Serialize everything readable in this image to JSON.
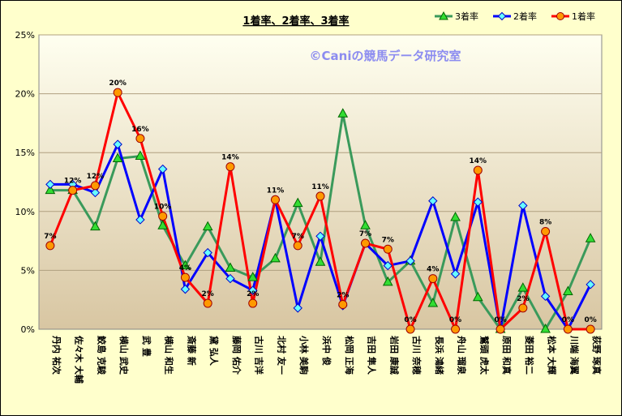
{
  "chart_data": {
    "type": "line",
    "title": "1着率、2着率、3着率",
    "watermark": "©Caniの競馬データ研究室",
    "ylim": [
      0,
      25
    ],
    "yticks": [
      "0%",
      "5%",
      "10%",
      "15%",
      "20%",
      "25%"
    ],
    "legend_position": "top-right",
    "categories": [
      "丹内 祐次",
      "佐々木 大輔",
      "鮫島 克駿",
      "横山 武史",
      "武 豊",
      "横山 和生",
      "斎藤 新",
      "黛 弘人",
      "藤岡 佑介",
      "古川 吉洋",
      "北村 友一",
      "小林 美駒",
      "浜中 俊",
      "松岡 正海",
      "吉田 隼人",
      "岩田 康誠",
      "古川 奈穂",
      "長浜 鴻緒",
      "舟山 瑠泉",
      "鷲頭 虎太",
      "原田 和真",
      "菱田 裕二",
      "松本 大輝",
      "川端 海翼",
      "荻野 琢真"
    ],
    "series": [
      {
        "name": "3着率",
        "color": "#3a9a5b",
        "marker": "triangle",
        "marker_fill": "#33dd33",
        "values": [
          11.8,
          11.8,
          8.7,
          14.5,
          14.7,
          8.8,
          5.4,
          8.7,
          5.2,
          4.4,
          6.0,
          10.7,
          5.7,
          18.3,
          8.8,
          4.0,
          5.8,
          2.2,
          9.5,
          2.7,
          0.0,
          3.5,
          0.0,
          3.2,
          7.7
        ]
      },
      {
        "name": "2着率",
        "color": "#0000ff",
        "marker": "diamond",
        "marker_fill": "#66ffff",
        "values": [
          12.3,
          12.3,
          11.6,
          15.7,
          9.3,
          13.6,
          3.4,
          6.5,
          4.3,
          3.3,
          11.0,
          1.8,
          7.9,
          2.0,
          7.3,
          5.4,
          5.8,
          10.9,
          4.7,
          10.8,
          0.0,
          10.5,
          2.8,
          0.0,
          3.8
        ]
      },
      {
        "name": "1着率",
        "color": "#ff0000",
        "marker": "circle",
        "marker_fill": "#ff9900",
        "values": [
          7.1,
          11.8,
          12.2,
          20.1,
          16.2,
          9.6,
          4.4,
          2.2,
          13.8,
          2.2,
          11.0,
          7.1,
          11.3,
          2.1,
          7.3,
          6.8,
          0.0,
          4.3,
          0.0,
          13.5,
          0.0,
          1.8,
          8.3,
          0.0,
          0.0
        ]
      }
    ],
    "data_labels_series": "1着率",
    "data_labels": [
      "7%",
      "12%",
      "12%",
      "20%",
      "16%",
      "10%",
      "4%",
      "2%",
      "14%",
      "2%",
      "11%",
      "7%",
      "11%",
      "2%",
      "7%",
      "7%",
      "0%",
      "4%",
      "0%",
      "14%",
      "0%",
      "2%",
      "8%",
      "0%",
      "0%"
    ]
  }
}
